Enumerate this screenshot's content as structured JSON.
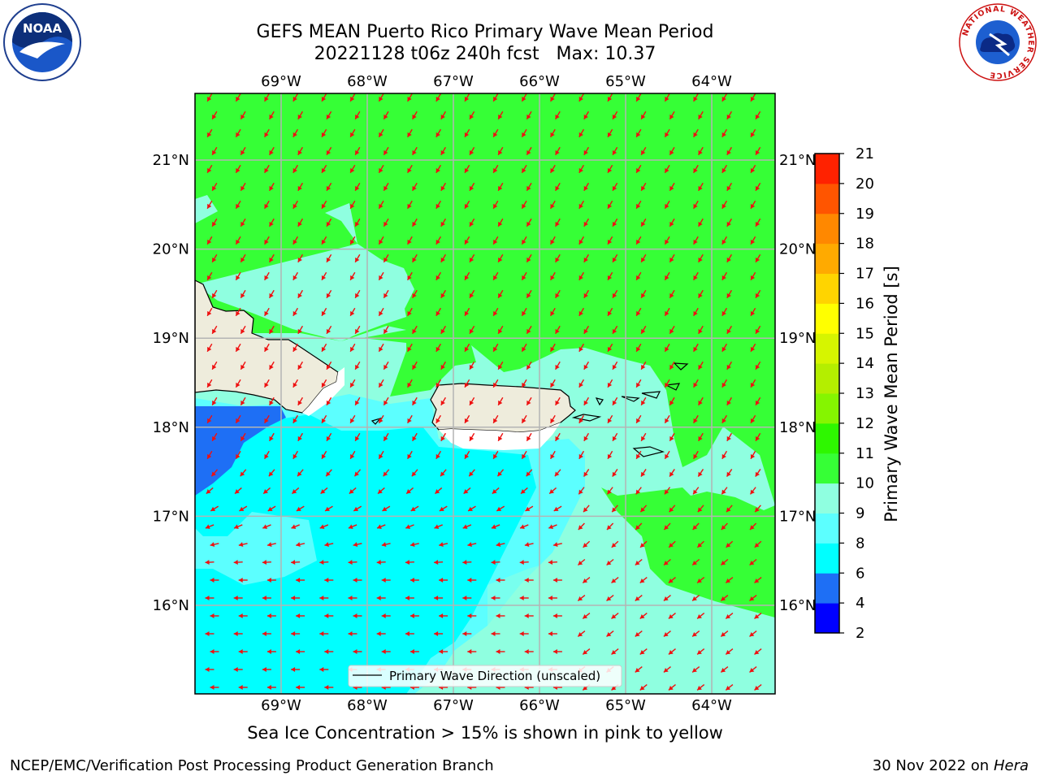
{
  "title_line1": "GEFS MEAN Puerto Rico Primary Wave Mean Period",
  "title_line2": "20221128 t06z 240h fcst   Max: 10.37",
  "note": "Sea Ice Concentration > 15% is shown in pink to yellow",
  "footer_left": "NCEP/EMC/Verification Post Processing Product Generation Branch",
  "footer_date": "30 Nov 2022 on",
  "footer_host": "Hera",
  "legend_label": "Primary Wave Direction (unscaled)",
  "colorbar": {
    "label": "Primary Wave Mean Period [s]",
    "ticks": [
      "2",
      "4",
      "6",
      "8",
      "9",
      "10",
      "11",
      "12",
      "13",
      "14",
      "15",
      "16",
      "17",
      "18",
      "19",
      "20",
      "21"
    ],
    "colors": [
      "#0000ff",
      "#1e6ff5",
      "#00ffff",
      "#5cffff",
      "#8fffe0",
      "#36ff36",
      "#2ef700",
      "#85f500",
      "#b4ee00",
      "#d6f500",
      "#ffff00",
      "#ffd400",
      "#ffaa00",
      "#ff8800",
      "#ff5500",
      "#ff2200"
    ]
  },
  "axes": {
    "lon_labels": [
      "69°W",
      "68°W",
      "67°W",
      "66°W",
      "65°W",
      "64°W"
    ],
    "lat_labels": [
      "21°N",
      "20°N",
      "19°N",
      "18°N",
      "17°N",
      "16°N"
    ]
  },
  "colors": {
    "land": "#eeecdc",
    "arrow": "#ee1111",
    "grid": "#b4b4b4",
    "field_high": "#36ff36",
    "field_mid": "#8fffe0",
    "field_low": "#5cffff",
    "field_cyan": "#00ffff",
    "field_blue": "#1e6ff5"
  },
  "logos": {
    "noaa_text": "NOAA",
    "nws_ring": "NATIONAL WEATHER SERVICE"
  }
}
